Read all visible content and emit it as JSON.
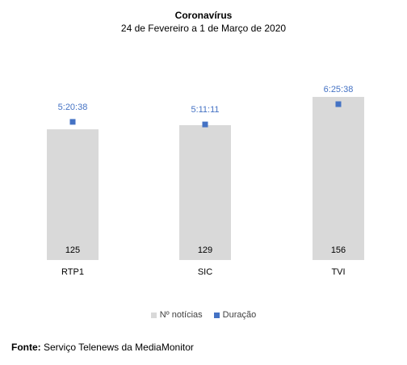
{
  "chart_data": {
    "type": "bar",
    "title": "Coronavírus",
    "subtitle": "24 de Fevereiro a 1 de Março de 2020",
    "categories": [
      "RTP1",
      "SIC",
      "TVI"
    ],
    "series": [
      {
        "name": "Nº notícias",
        "values": [
          125,
          129,
          156
        ],
        "labels": [
          "125",
          "129",
          "156"
        ],
        "color": "#d9d9d9"
      },
      {
        "name": "Duração",
        "values": [
          19238,
          18671,
          23138
        ],
        "labels": [
          "5:20:38",
          "5:11:11",
          "6:25:38"
        ],
        "color": "#4472c4",
        "label_color": "#4472c4"
      }
    ],
    "legend_position": "bottom",
    "grid": false
  },
  "source": {
    "prefix": "Fonte:",
    "text": "Serviço Telenews da MediaMonitor"
  }
}
